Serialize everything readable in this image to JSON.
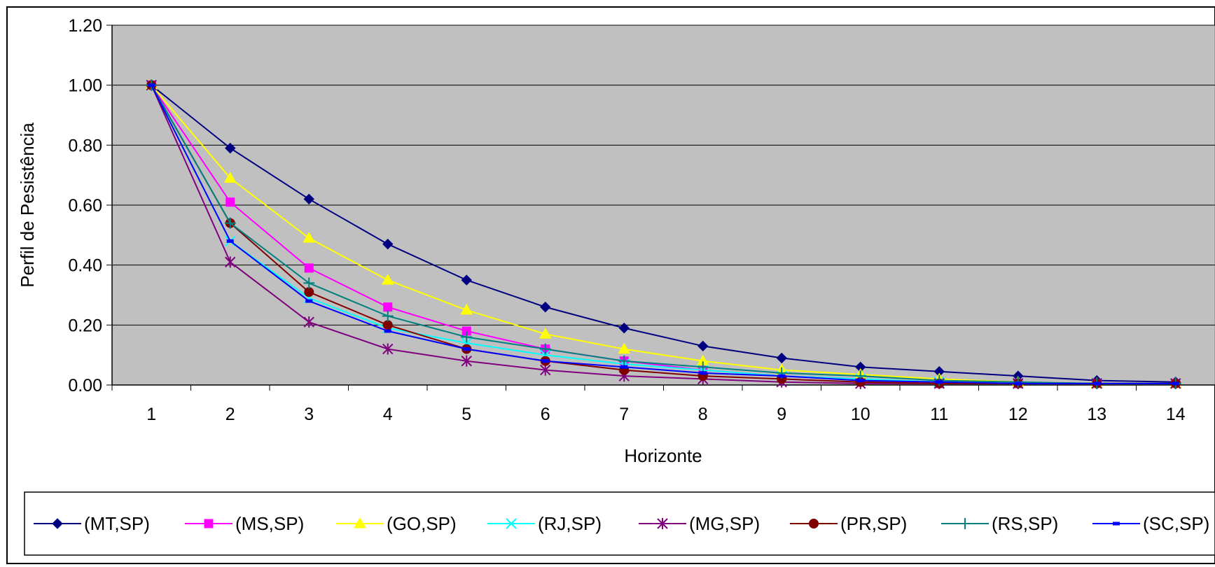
{
  "chart_data": {
    "type": "line",
    "title": "",
    "xlabel": "Horizonte",
    "ylabel": "Perfil de Pesistência",
    "categories": [
      "1",
      "2",
      "3",
      "4",
      "5",
      "6",
      "7",
      "8",
      "9",
      "10",
      "11",
      "12",
      "13",
      "14"
    ],
    "ylim": [
      0,
      1.2
    ],
    "yticks": [
      "0.00",
      "0.20",
      "0.40",
      "0.60",
      "0.80",
      "1.00",
      "1.20"
    ],
    "grid": true,
    "legend_position": "bottom",
    "plot_background": "#c0c0c0",
    "series": [
      {
        "name": "(MT,SP)",
        "color": "#000080",
        "marker": "diamond",
        "values": [
          1.0,
          0.79,
          0.62,
          0.47,
          0.35,
          0.26,
          0.19,
          0.13,
          0.09,
          0.06,
          0.045,
          0.03,
          0.015,
          0.01
        ]
      },
      {
        "name": "(MS,SP)",
        "color": "#ff00ff",
        "marker": "square",
        "values": [
          1.0,
          0.61,
          0.39,
          0.26,
          0.18,
          0.12,
          0.08,
          0.05,
          0.03,
          0.02,
          0.005,
          0.005,
          0.005,
          0.005
        ]
      },
      {
        "name": "(GO,SP)",
        "color": "#ffff00",
        "marker": "triangle",
        "values": [
          1.0,
          0.69,
          0.49,
          0.35,
          0.25,
          0.17,
          0.12,
          0.08,
          0.05,
          0.035,
          0.02,
          0.01,
          0.005,
          0.005
        ]
      },
      {
        "name": "(RJ,SP)",
        "color": "#00ffff",
        "marker": "x",
        "values": [
          1.0,
          0.48,
          0.29,
          0.19,
          0.14,
          0.1,
          0.07,
          0.05,
          0.03,
          0.02,
          0.01,
          0.005,
          0.005,
          0.005
        ]
      },
      {
        "name": "(MG,SP)",
        "color": "#800080",
        "marker": "star",
        "values": [
          1.0,
          0.41,
          0.21,
          0.12,
          0.08,
          0.05,
          0.03,
          0.02,
          0.01,
          0.005,
          0.005,
          0.005,
          0.005,
          0.005
        ]
      },
      {
        "name": "(PR,SP)",
        "color": "#800000",
        "marker": "circle",
        "values": [
          1.0,
          0.54,
          0.31,
          0.2,
          0.12,
          0.08,
          0.05,
          0.03,
          0.02,
          0.01,
          0.005,
          0.005,
          0.005,
          0.005
        ]
      },
      {
        "name": "(RS,SP)",
        "color": "#008080",
        "marker": "plus",
        "values": [
          1.0,
          0.54,
          0.34,
          0.23,
          0.16,
          0.12,
          0.08,
          0.06,
          0.04,
          0.03,
          0.015,
          0.01,
          0.005,
          0.005
        ]
      },
      {
        "name": "(SC,SP)",
        "color": "#0000ff",
        "marker": "dash",
        "values": [
          1.0,
          0.48,
          0.28,
          0.18,
          0.12,
          0.08,
          0.06,
          0.04,
          0.03,
          0.015,
          0.01,
          0.005,
          0.005,
          0.005
        ]
      }
    ]
  }
}
